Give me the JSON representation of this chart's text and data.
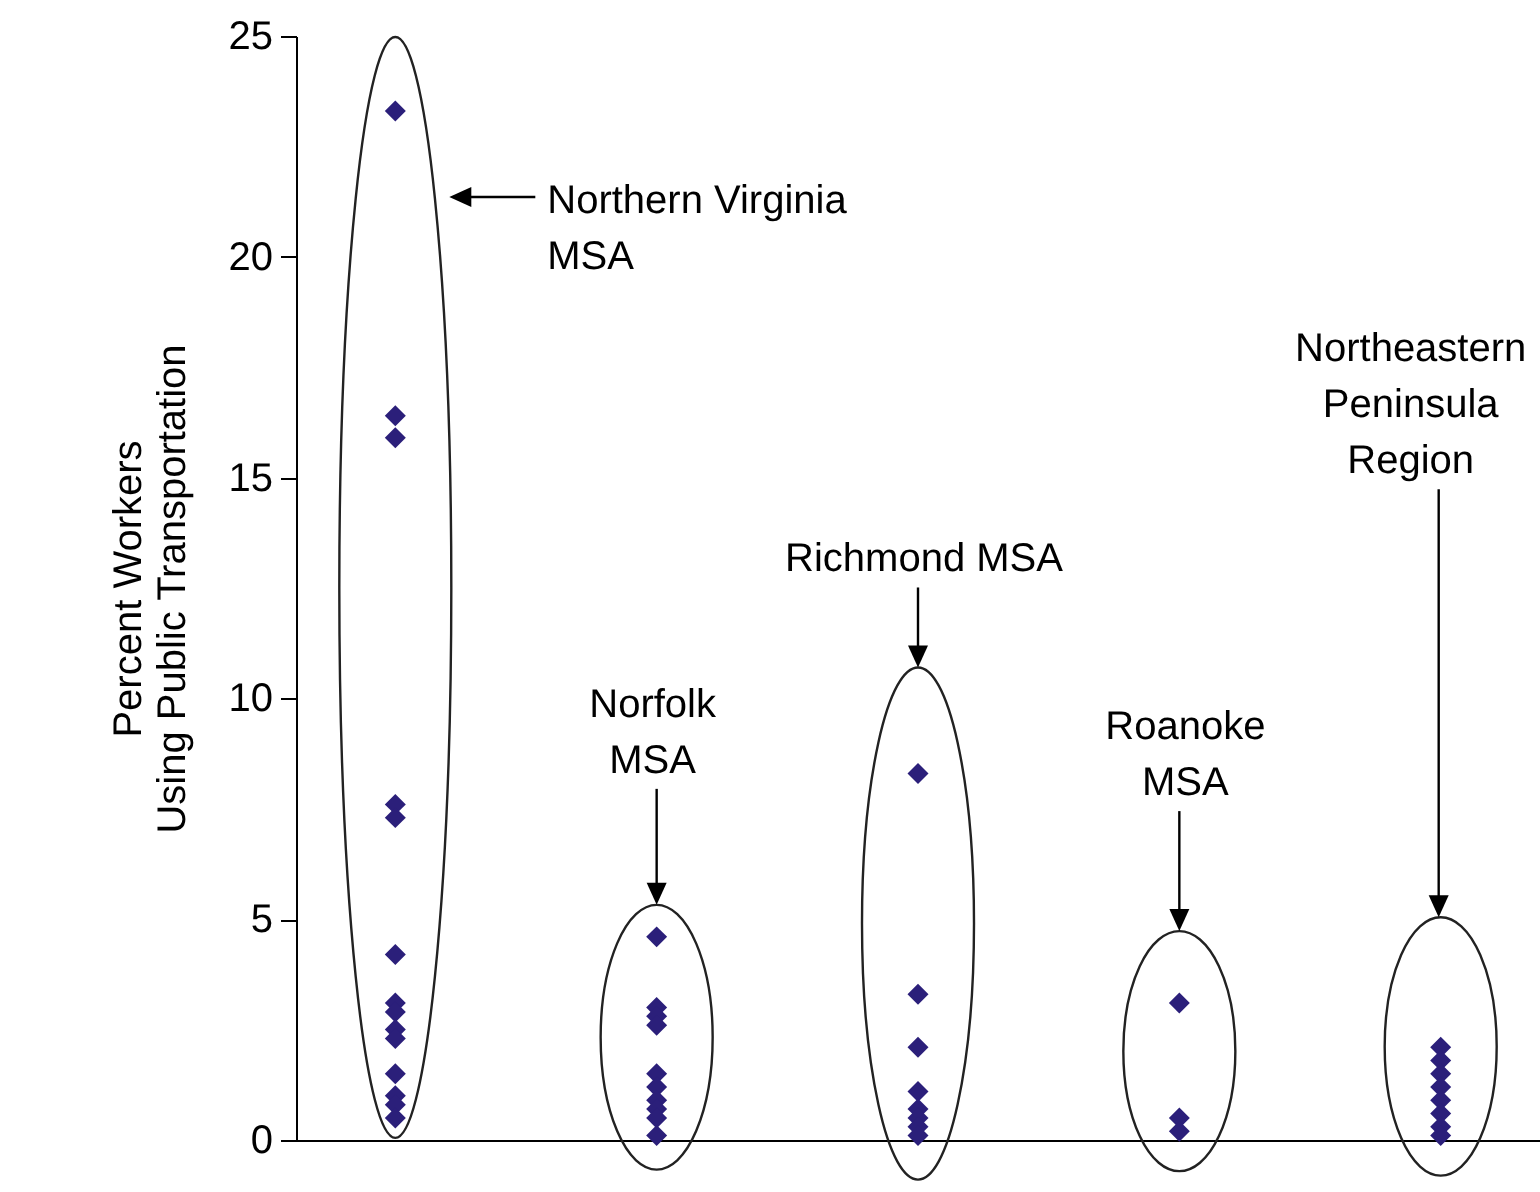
{
  "chart_data": {
    "type": "scatter",
    "ylabel": "Percent Workers Using Public Transportation",
    "categories": [
      null,
      null,
      null,
      null,
      null
    ],
    "ylim": [
      0,
      25
    ],
    "yticks": [
      0,
      5,
      10,
      15,
      20,
      25
    ],
    "tick_labels": "y",
    "marker": "diamond",
    "annotations": [
      "Northern Virginia MSA",
      "Norfolk MSA",
      "Richmond MSA",
      "Roanoke MSA",
      "Northeastern Peninsula Region"
    ],
    "series": [
      {
        "color": "#2b1f7a",
        "values": [
          23.3,
          4.6,
          8.3,
          3.1,
          2.1
        ]
      },
      {
        "color": "#2b1f7a",
        "values": [
          16.4,
          3.0,
          3.3,
          0.5,
          1.8
        ]
      },
      {
        "color": "#2b1f7a",
        "values": [
          15.9,
          2.8,
          2.1,
          null,
          1.5
        ]
      },
      {
        "color": "#2b1f7a",
        "values": [
          7.6,
          2.6,
          1.1,
          0.2,
          1.2
        ]
      },
      {
        "color": "#2b1f7a",
        "values": [
          7.3,
          1.5,
          0.7,
          null,
          0.9
        ]
      },
      {
        "color": "#2b1f7a",
        "values": [
          4.2,
          1.2,
          0.5,
          null,
          0.6
        ]
      },
      {
        "color": "#2b1f7a",
        "values": [
          3.1,
          0.9,
          0.3,
          null,
          0.3
        ]
      },
      {
        "color": "#2b1f7a",
        "values": [
          2.9,
          0.7,
          0.1,
          null,
          0.1
        ]
      },
      {
        "color": "#2b1f7a",
        "values": [
          2.5,
          0.5,
          null,
          null,
          null
        ]
      },
      {
        "color": "#2b1f7a",
        "values": [
          2.3,
          0.1,
          null,
          null,
          null
        ]
      },
      {
        "color": "#2b1f7a",
        "values": [
          1.5,
          null,
          null,
          null,
          null
        ]
      },
      {
        "color": "#2b1f7a",
        "values": [
          1.0,
          null,
          null,
          null,
          null
        ]
      },
      {
        "color": "#2b1f7a",
        "values": [
          0.8,
          null,
          null,
          null,
          null
        ]
      },
      {
        "color": "#2b1f7a",
        "values": [
          null,
          null,
          null,
          null,
          null
        ]
      },
      {
        "color": "#2b1f7a",
        "values": [
          0.5,
          null,
          null,
          null,
          null
        ]
      }
    ]
  }
}
